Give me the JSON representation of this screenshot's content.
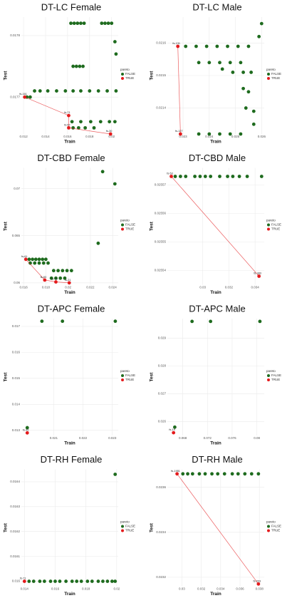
{
  "chart_data": [
    {
      "type": "scatter",
      "title": "DT-LC Female",
      "x_label": "Train",
      "y_label": "Test",
      "legend_title": "pareto",
      "xlim": [
        0.0118,
        0.0206
      ],
      "xticks": [
        0.012,
        0.014,
        0.016,
        0.018,
        0.02
      ],
      "ylim": [
        0.01764,
        0.01783
      ],
      "yticks": [
        0.0177,
        0.0178
      ],
      "series": [
        {
          "name": "FALSE",
          "color": "#1e6b1e",
          "x": [
            0.0163,
            0.0166,
            0.0169,
            0.0172,
            0.0175,
            0.0191,
            0.0194,
            0.0197,
            0.02,
            0.0165,
            0.0168,
            0.0171,
            0.0174,
            0.0203,
            0.0204,
            0.013,
            0.0135,
            0.0142,
            0.015,
            0.0158,
            0.0165,
            0.0172,
            0.018,
            0.0188,
            0.0196,
            0.0204,
            0.0123,
            0.0126,
            0.0164,
            0.0172,
            0.0181,
            0.019,
            0.0198,
            0.0203,
            0.0165,
            0.017,
            0.0176,
            0.0184
          ],
          "values": [
            0.01782,
            0.01782,
            0.01782,
            0.01782,
            0.01782,
            0.01782,
            0.01782,
            0.01782,
            0.01782,
            0.01775,
            0.01775,
            0.01775,
            0.01775,
            0.01779,
            0.01777,
            0.01771,
            0.01771,
            0.01771,
            0.01771,
            0.01771,
            0.01771,
            0.01771,
            0.01771,
            0.01771,
            0.01771,
            0.01771,
            0.0177,
            0.0177,
            0.01766,
            0.01766,
            0.01766,
            0.01766,
            0.01766,
            0.01766,
            0.01765,
            0.01765,
            0.01765,
            0.01765
          ]
        },
        {
          "name": "TRUE",
          "color": "#e41a1c",
          "x": [
            0.0121,
            0.0161,
            0.0161,
            0.0199
          ],
          "values": [
            0.0177,
            0.01767,
            0.01765,
            0.01764
          ],
          "labels": [
            "fs-161",
            "fs-71",
            "fs-57",
            "fs-30"
          ]
        }
      ]
    },
    {
      "type": "scatter",
      "title": "DT-LC Male",
      "x_label": "Train",
      "y_label": "Test",
      "legend_title": "pareto",
      "xlim": [
        0.0224,
        0.0261
      ],
      "xticks": [
        0.023,
        0.024,
        0.025,
        0.026
      ],
      "ylim": [
        0.02132,
        0.02168
      ],
      "yticks": [
        0.0214,
        0.0215,
        0.0216
      ],
      "series": [
        {
          "name": "FALSE",
          "color": "#1e6b1e",
          "x": [
            0.026,
            0.0259,
            0.0231,
            0.0235,
            0.0239,
            0.0243,
            0.0247,
            0.0251,
            0.0255,
            0.0236,
            0.024,
            0.0244,
            0.0248,
            0.0252,
            0.0245,
            0.0249,
            0.0253,
            0.0256,
            0.0253,
            0.0255,
            0.0254,
            0.0257,
            0.0257,
            0.0236,
            0.024,
            0.0244,
            0.0248,
            0.0252
          ],
          "values": [
            0.02166,
            0.02162,
            0.02159,
            0.02159,
            0.02159,
            0.02159,
            0.02159,
            0.02159,
            0.02159,
            0.02154,
            0.02154,
            0.02154,
            0.02154,
            0.02154,
            0.02152,
            0.02151,
            0.02151,
            0.02151,
            0.02146,
            0.02145,
            0.0214,
            0.02139,
            0.02135,
            0.02132,
            0.02132,
            0.02132,
            0.02132,
            0.02132
          ]
        },
        {
          "name": "TRUE",
          "color": "#e41a1c",
          "x": [
            0.0228,
            0.0229
          ],
          "values": [
            0.02159,
            0.02132
          ],
          "labels": [
            "fs-131",
            "fs-127"
          ]
        }
      ]
    },
    {
      "type": "scatter",
      "title": "DT-CBD Female",
      "x_label": "Train",
      "y_label": "Test",
      "legend_title": "pareto",
      "xlim": [
        0.0158,
        0.0245
      ],
      "xticks": [
        0.016,
        0.018,
        0.02,
        0.022,
        0.024
      ],
      "ylim": [
        0.0598,
        0.0722
      ],
      "yticks": [
        0.06,
        0.065,
        0.07
      ],
      "series": [
        {
          "name": "FALSE",
          "color": "#1e6b1e",
          "x": [
            0.0231,
            0.0242,
            0.0227,
            0.0165,
            0.0168,
            0.0171,
            0.0174,
            0.0177,
            0.018,
            0.0166,
            0.017,
            0.0174,
            0.0178,
            0.0182,
            0.0187,
            0.0191,
            0.0195,
            0.0199,
            0.0203,
            0.0185,
            0.0189,
            0.0193,
            0.0197
          ],
          "values": [
            0.0718,
            0.0705,
            0.0642,
            0.0625,
            0.0625,
            0.0625,
            0.0625,
            0.0625,
            0.0625,
            0.0621,
            0.0621,
            0.0621,
            0.0621,
            0.0621,
            0.0613,
            0.0613,
            0.0613,
            0.0613,
            0.0613,
            0.0605,
            0.0605,
            0.0605,
            0.0605
          ]
        },
        {
          "name": "TRUE",
          "color": "#e41a1c",
          "x": [
            0.0162,
            0.0179,
            0.0189,
            0.0201
          ],
          "values": [
            0.0625,
            0.0603,
            0.0601,
            0.06
          ],
          "labels": [
            "fs-61",
            "fs-83",
            "fs-74",
            "fs-21"
          ]
        }
      ]
    },
    {
      "type": "scatter",
      "title": "DT-CBD Male",
      "x_label": "Train",
      "y_label": "Test",
      "legend_title": "pareto",
      "xlim": [
        0.0273,
        0.0347
      ],
      "xticks": [
        0.03,
        0.032,
        0.034
      ],
      "ylim": [
        0.025535,
        0.025576
      ],
      "yticks": [
        0.02554,
        0.02555,
        0.02556,
        0.02557
      ],
      "series": [
        {
          "name": "FALSE",
          "color": "#1e6b1e",
          "x": [
            0.0279,
            0.0283,
            0.0287,
            0.0294,
            0.0298,
            0.0302,
            0.0306,
            0.0313,
            0.0319,
            0.0323,
            0.0328,
            0.0334,
            0.0345
          ],
          "values": [
            0.025573,
            0.025573,
            0.025573,
            0.025573,
            0.025573,
            0.025573,
            0.025573,
            0.025573,
            0.025573,
            0.025573,
            0.025573,
            0.025573,
            0.025573
          ]
        },
        {
          "name": "TRUE",
          "color": "#e41a1c",
          "x": [
            0.0276,
            0.0343
          ],
          "values": [
            0.025573,
            0.025538
          ],
          "labels": [
            "fs-53",
            "fs-383"
          ]
        }
      ]
    },
    {
      "type": "scatter",
      "title": "DT-APC Female",
      "x_label": "Train",
      "y_label": "Test",
      "legend_title": "pareto",
      "xlim": [
        0.0199,
        0.0232
      ],
      "xticks": [
        0.021,
        0.022,
        0.023
      ],
      "ylim": [
        0.0128,
        0.0173
      ],
      "yticks": [
        0.013,
        0.014,
        0.015,
        0.016,
        0.017
      ],
      "series": [
        {
          "name": "FALSE",
          "color": "#1e6b1e",
          "x": [
            0.0206,
            0.0213,
            0.0231,
            0.0201
          ],
          "values": [
            0.0172,
            0.0172,
            0.0172,
            0.0131
          ]
        },
        {
          "name": "TRUE",
          "color": "#e41a1c",
          "x": [
            0.0201
          ],
          "values": [
            0.0129
          ],
          "labels": [
            "fs-42"
          ]
        }
      ]
    },
    {
      "type": "scatter",
      "title": "DT-APC Male",
      "x_label": "Train",
      "y_label": "Test",
      "legend_title": "pareto",
      "xlim": [
        0.0655,
        0.0812
      ],
      "xticks": [
        0.068,
        0.072,
        0.076,
        0.08
      ],
      "ylim": [
        0.0255,
        0.0297
      ],
      "yticks": [
        0.026,
        0.027,
        0.028,
        0.029
      ],
      "series": [
        {
          "name": "FALSE",
          "color": "#1e6b1e",
          "x": [
            0.0695,
            0.0725,
            0.0805,
            0.0667
          ],
          "values": [
            0.0296,
            0.0296,
            0.0296,
            0.0258
          ]
        },
        {
          "name": "TRUE",
          "color": "#e41a1c",
          "x": [
            0.0665
          ],
          "values": [
            0.0256
          ],
          "labels": [
            "fs-19"
          ]
        }
      ]
    },
    {
      "type": "scatter",
      "title": "DT-RH Female",
      "x_label": "Train",
      "y_label": "Test",
      "legend_title": "pareto",
      "xlim": [
        0.0138,
        0.0201
      ],
      "xticks": [
        0.014,
        0.016,
        0.018,
        0.02
      ],
      "ylim": [
        0.01598,
        0.01645
      ],
      "yticks": [
        0.016,
        0.0161,
        0.0162,
        0.0163,
        0.0164
      ],
      "series": [
        {
          "name": "FALSE",
          "color": "#1e6b1e",
          "x": [
            0.0199,
            0.0143,
            0.0146,
            0.015,
            0.0153,
            0.0157,
            0.016,
            0.0163,
            0.0167,
            0.0171,
            0.0174,
            0.0177,
            0.0181,
            0.0184,
            0.0188,
            0.0191,
            0.0194,
            0.0197,
            0.0199
          ],
          "values": [
            0.01643,
            0.016,
            0.016,
            0.016,
            0.016,
            0.016,
            0.016,
            0.016,
            0.016,
            0.016,
            0.016,
            0.016,
            0.016,
            0.016,
            0.016,
            0.016,
            0.016,
            0.016,
            0.016
          ]
        },
        {
          "name": "TRUE",
          "color": "#e41a1c",
          "x": [
            0.014
          ],
          "values": [
            0.016
          ],
          "labels": [
            "fs-71"
          ]
        }
      ]
    },
    {
      "type": "scatter",
      "title": "DT-RH Male",
      "x_label": "Train",
      "y_label": "Test",
      "legend_title": "pareto",
      "xlim": [
        0.0285,
        0.0385
      ],
      "xticks": [
        0.03,
        0.032,
        0.034,
        0.036,
        0.038
      ],
      "ylim": [
        0.02316,
        0.02368
      ],
      "yticks": [
        0.0232,
        0.0234,
        0.0236
      ],
      "series": [
        {
          "name": "FALSE",
          "color": "#1e6b1e",
          "x": [
            0.0301,
            0.0306,
            0.0311,
            0.0318,
            0.0324,
            0.0331,
            0.0337,
            0.0344,
            0.0352,
            0.0358,
            0.0365,
            0.0372,
            0.0379
          ],
          "values": [
            0.02366,
            0.02366,
            0.02366,
            0.02366,
            0.02366,
            0.02366,
            0.02366,
            0.02366,
            0.02366,
            0.02366,
            0.02366,
            0.02366,
            0.02366
          ]
        },
        {
          "name": "TRUE",
          "color": "#e41a1c",
          "x": [
            0.0295,
            0.0379
          ],
          "values": [
            0.02366,
            0.02317
          ],
          "labels": [
            "fs-1951",
            "fs-203"
          ]
        }
      ]
    }
  ]
}
